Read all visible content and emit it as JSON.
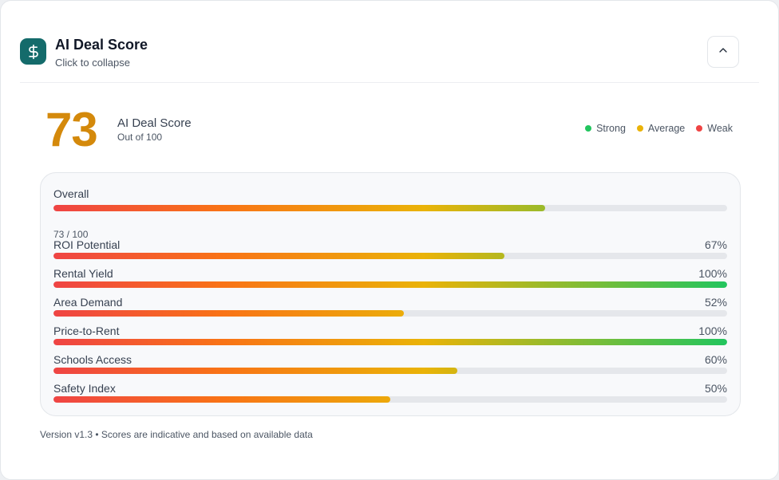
{
  "header": {
    "title": "AI Deal Score",
    "subtitle": "Click to collapse",
    "logo_icon": "dollar-sign-icon",
    "collapse_icon": "chevron-up-icon"
  },
  "score": {
    "value": "73",
    "label": "AI Deal Score",
    "sublabel": "Out of 100",
    "color": "#d4890b"
  },
  "legend": [
    {
      "label": "Strong",
      "color": "#22c55e"
    },
    {
      "label": "Average",
      "color": "#eab308"
    },
    {
      "label": "Weak",
      "color": "#ef4444"
    }
  ],
  "overall": {
    "label": "Overall",
    "value": 73,
    "value_text": "73 / 100"
  },
  "metrics": [
    {
      "label": "ROI Potential",
      "value": 67,
      "value_text": "67%"
    },
    {
      "label": "Rental Yield",
      "value": 100,
      "value_text": "100%"
    },
    {
      "label": "Area Demand",
      "value": 52,
      "value_text": "52%"
    },
    {
      "label": "Price-to-Rent",
      "value": 100,
      "value_text": "100%"
    },
    {
      "label": "Schools Access",
      "value": 60,
      "value_text": "60%"
    },
    {
      "label": "Safety Index",
      "value": 50,
      "value_text": "50%"
    }
  ],
  "footer": {
    "text": "Version v1.3 • Scores are indicative and based on available data"
  },
  "colors": {
    "brand": "#146b6b",
    "gradient_start": "#ef4444",
    "gradient_mid": "#eab308",
    "gradient_end": "#22c55e"
  }
}
